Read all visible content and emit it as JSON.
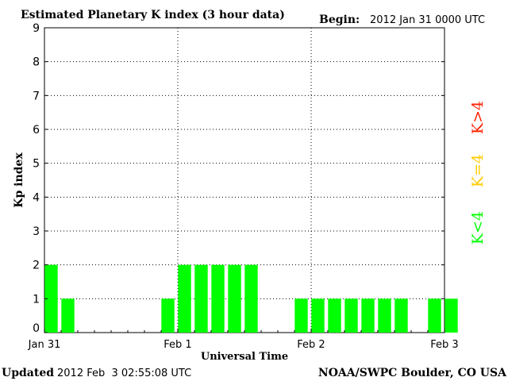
{
  "chart_data": {
    "type": "bar",
    "title": "Estimated Planetary K index (3 hour data)",
    "begin_label": "Begin:",
    "begin_value": "2012 Jan 31 0000 UTC",
    "xlabel": "Universal Time",
    "ylabel": "Kp index",
    "ylim": [
      0,
      9
    ],
    "yticks": [
      "0",
      "1",
      "2",
      "3",
      "4",
      "5",
      "6",
      "7",
      "8",
      "9"
    ],
    "xticks": [
      "Jan 31",
      "Feb 1",
      "Feb 2",
      "Feb 3"
    ],
    "interval_hours": 3,
    "values": [
      2,
      1,
      0,
      0,
      0,
      0,
      0,
      1,
      2,
      2,
      2,
      2,
      2,
      0,
      0,
      1,
      1,
      1,
      1,
      1,
      1,
      1,
      0,
      1,
      1
    ],
    "grid": true,
    "legend": [
      {
        "label": "K<4",
        "color": "#00ff00"
      },
      {
        "label": "K=4",
        "color": "#ffcc00"
      },
      {
        "label": "K>4",
        "color": "#ff2200"
      }
    ]
  },
  "footer": {
    "updated_label": "Updated",
    "updated_value": "2012 Feb  3 02:55:08 UTC",
    "source": "NOAA/SWPC Boulder, CO USA"
  },
  "colors": {
    "bar_low": "#00ff00",
    "bar_eq": "#ffcc00",
    "bar_high": "#ff2200",
    "axis": "#000000",
    "grid": "#000000"
  }
}
